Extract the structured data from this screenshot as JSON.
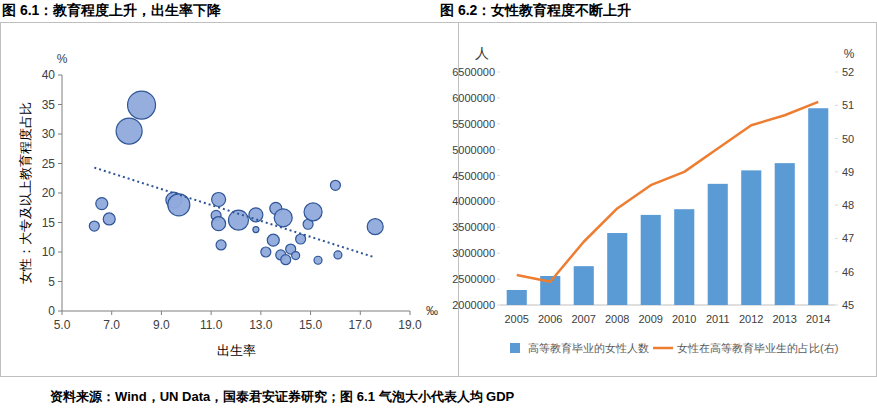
{
  "chart_data": [
    {
      "type": "scatter",
      "title": "图 6.1：教育程度上升，出生率下降",
      "x_label": "出生率",
      "y_label": "女性：大专及以上教育程度占比",
      "x_unit": "‰",
      "y_unit": "%",
      "xlim": [
        5,
        19
      ],
      "xticks": [
        {
          "value": 5,
          "label": "5.0"
        },
        {
          "value": 7,
          "label": "7.0"
        },
        {
          "value": 9,
          "label": "9.0"
        },
        {
          "value": 11,
          "label": "11.0"
        },
        {
          "value": 13,
          "label": "13.0"
        },
        {
          "value": 15,
          "label": "15.0"
        },
        {
          "value": 17,
          "label": "17.0"
        },
        {
          "value": 19,
          "label": "19.0"
        }
      ],
      "ylim": [
        0,
        40
      ],
      "yticks": [
        0,
        5,
        10,
        15,
        20,
        25,
        30,
        35,
        40
      ],
      "grid": false,
      "series": [
        {
          "type": "bubble",
          "color": "#8faadc",
          "x": [
            8.2,
            7.7,
            6.3,
            6.6,
            6.9,
            9.5,
            9.7,
            11.3,
            11.2,
            11.3,
            11.4,
            12.1,
            12.8,
            12.8,
            13.2,
            13.5,
            13.6,
            13.9,
            13.8,
            14.0,
            14.2,
            14.4,
            14.6,
            14.9,
            15.1,
            15.3,
            16.0,
            16.1,
            17.6
          ],
          "values": [
            34.9,
            30.5,
            14.4,
            18.2,
            15.6,
            18.8,
            18.0,
            18.9,
            16.2,
            14.8,
            11.2,
            15.4,
            16.3,
            13.8,
            10.0,
            12.0,
            17.4,
            15.8,
            9.5,
            8.7,
            10.5,
            9.4,
            12.2,
            14.7,
            16.8,
            8.6,
            21.3,
            9.5,
            14.3
          ],
          "sizes": [
            196,
            169,
            25,
            36,
            36,
            64,
            121,
            49,
            25,
            49,
            25,
            100,
            49,
            9,
            25,
            36,
            36,
            81,
            25,
            25,
            25,
            16,
            25,
            25,
            81,
            16,
            25,
            16,
            64
          ]
        },
        {
          "type": "line",
          "line_style": "dotted",
          "color": "#2f5597",
          "x": [
            6.3,
            17.5
          ],
          "values": [
            24.3,
            9.2
          ]
        }
      ]
    },
    {
      "type": "bar",
      "title": "图 6.2：女性教育程度不断上升",
      "y_unit": "人",
      "y2_unit": "%",
      "categories": [
        "2005",
        "2006",
        "2007",
        "2008",
        "2009",
        "2010",
        "2011",
        "2012",
        "2013",
        "2014"
      ],
      "ylim": [
        2000000,
        6500000
      ],
      "yticks": [
        2000000,
        2500000,
        3000000,
        3500000,
        4000000,
        4500000,
        5000000,
        5500000,
        6000000,
        6500000
      ],
      "y2lim": [
        45,
        52
      ],
      "y2ticks": [
        45,
        46,
        47,
        48,
        49,
        50,
        51,
        52
      ],
      "grid": false,
      "legend": "bottom",
      "series": [
        {
          "name": "高等教育毕业的女性人数",
          "type": "bar",
          "color": "#5b9bd5",
          "values": [
            2290000,
            2560000,
            2750000,
            3390000,
            3740000,
            3850000,
            4340000,
            4600000,
            4740000,
            5800000
          ]
        },
        {
          "name": "女性在高等教育毕业生的占比(右)",
          "type": "line",
          "color": "#ed7d31",
          "axis": "y2",
          "values": [
            45.9,
            45.7,
            46.9,
            47.9,
            48.6,
            49.0,
            49.7,
            50.4,
            50.7,
            51.1
          ]
        }
      ]
    }
  ],
  "source": "资料来源：Wind，UN Data，国泰君安证券研究；图 6.1 气泡大小代表人均 GDP"
}
